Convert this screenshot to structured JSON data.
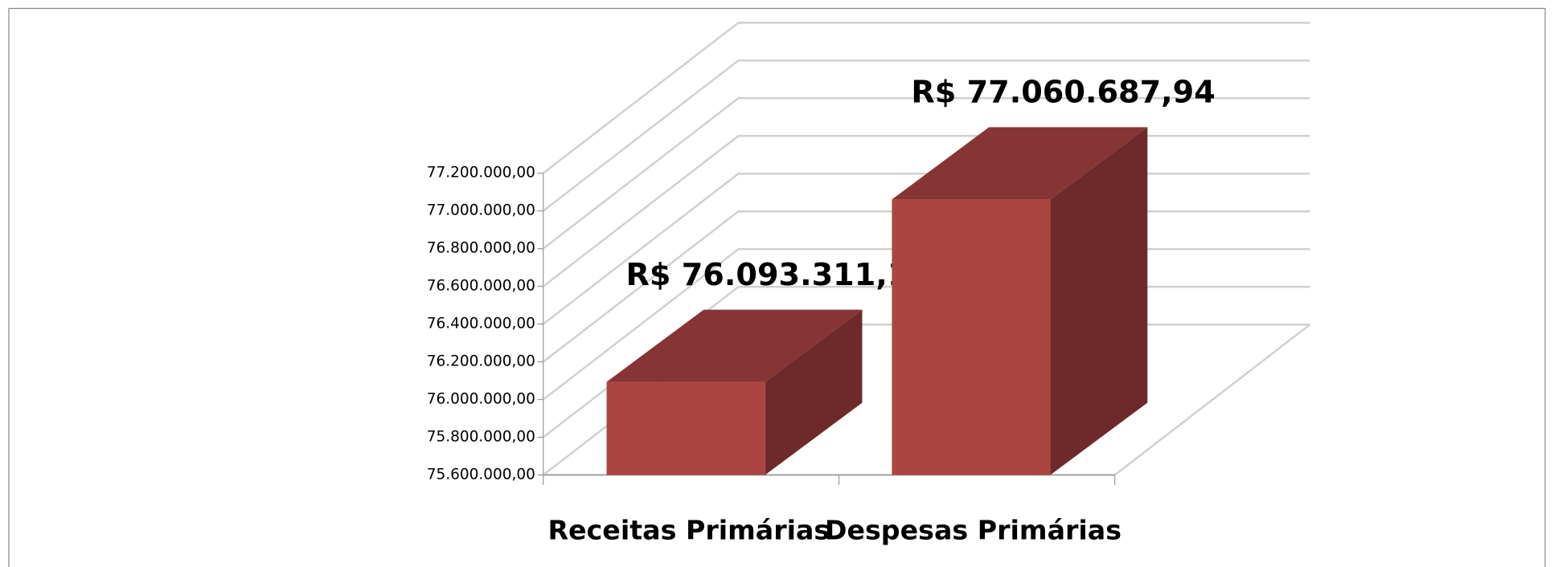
{
  "chart_data": {
    "type": "bar3d",
    "categories": [
      "Receitas Primárias",
      "Despesas Primárias"
    ],
    "values": [
      76093311.13,
      77060687.94
    ],
    "value_labels": [
      "R$ 76.093.311,13",
      "R$ 77.060.687,94"
    ],
    "color": "#ab4542",
    "ylim": [
      75600000,
      77200000
    ],
    "yticks": [
      {
        "value": 75600000,
        "label": "75.600.000,00"
      },
      {
        "value": 75800000,
        "label": "75.800.000,00"
      },
      {
        "value": 76000000,
        "label": "76.000.000,00"
      },
      {
        "value": 76200000,
        "label": "76.200.000,00"
      },
      {
        "value": 76400000,
        "label": "76.400.000,00"
      },
      {
        "value": 76600000,
        "label": "76.600.000,00"
      },
      {
        "value": 76800000,
        "label": "76.800.000,00"
      },
      {
        "value": 77000000,
        "label": "77.000.000,00"
      },
      {
        "value": 77200000,
        "label": "77.200.000,00"
      }
    ],
    "grid": true
  }
}
